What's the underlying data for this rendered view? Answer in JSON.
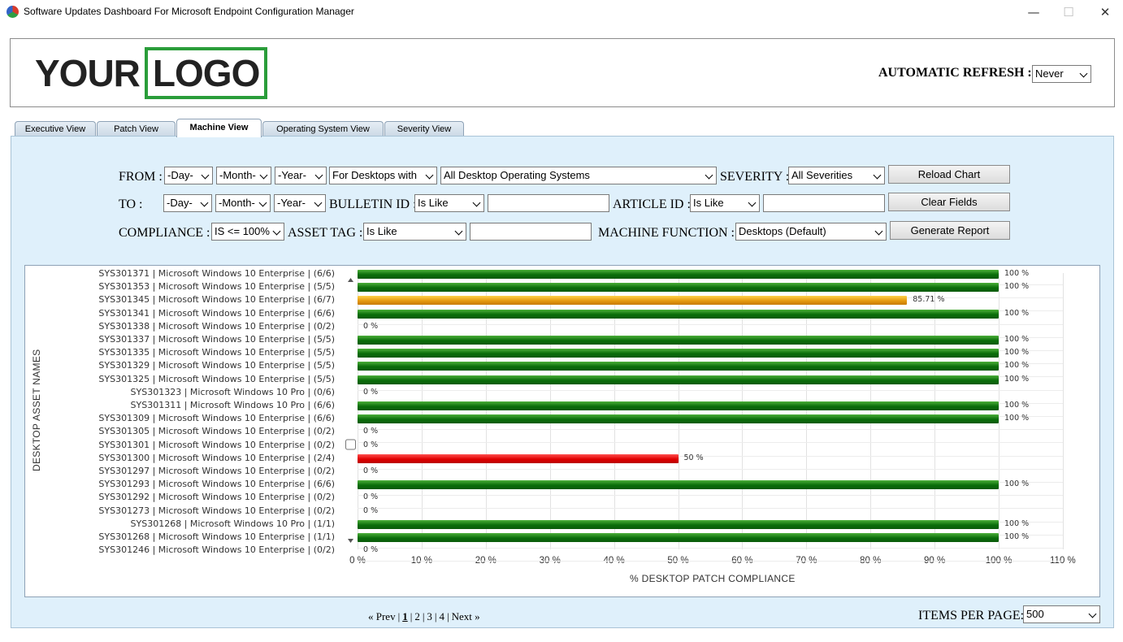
{
  "window": {
    "title": "Software Updates Dashboard For Microsoft Endpoint Configuration Manager",
    "minimize": "—",
    "maximize": "☐",
    "close": "✕"
  },
  "header": {
    "logo_left": "YOUR",
    "logo_right": "LOGO",
    "refresh_label": "AUTOMATIC REFRESH :",
    "refresh_value": "Never"
  },
  "tabs": [
    "Executive View",
    "Patch View",
    "Machine View",
    "Operating System View",
    "Severity View"
  ],
  "active_tab": "Machine View",
  "filters": {
    "from_label": "FROM :",
    "to_label": "TO :",
    "day": "-Day-",
    "month": "-Month-",
    "year": "-Year-",
    "desktops_with": "For Desktops with",
    "os": "All Desktop Operating Systems",
    "severity_label": "SEVERITY :",
    "severity": "All Severities",
    "bulletin_label": "BULLETIN ID :",
    "bulletin_op": "Is Like",
    "article_label": "ARTICLE ID :",
    "article_op": "Is Like",
    "compliance_label": "COMPLIANCE :",
    "compliance": "IS <= 100%",
    "asset_label": "ASSET TAG :",
    "asset_op": "Is Like",
    "machine_function_label": "MACHINE FUNCTION :",
    "machine_function": "Desktops (Default)"
  },
  "buttons": {
    "reload": "Reload Chart",
    "clear": "Clear Fields",
    "generate": "Generate Report"
  },
  "chart_data": {
    "type": "bar",
    "orientation": "horizontal",
    "ylabel": "DESKTOP ASSET NAMES",
    "xlabel": "% DESKTOP PATCH COMPLIANCE",
    "xlim": [
      0,
      110
    ],
    "xticks": [
      "0 %",
      "10 %",
      "20 %",
      "30 %",
      "40 %",
      "50 %",
      "60 %",
      "70 %",
      "80 %",
      "90 %",
      "100 %",
      "110 %"
    ],
    "categories": [
      "SYS301371 | Microsoft Windows 10 Enterprise | (6/6)",
      "SYS301353 | Microsoft Windows 10 Enterprise | (5/5)",
      "SYS301345 | Microsoft Windows 10 Enterprise | (6/7)",
      "SYS301341 | Microsoft Windows 10 Enterprise | (6/6)",
      "SYS301338 | Microsoft Windows 10 Enterprise | (0/2)",
      "SYS301337 | Microsoft Windows 10 Enterprise | (5/5)",
      "SYS301335 | Microsoft Windows 10 Enterprise | (5/5)",
      "SYS301329 | Microsoft Windows 10 Enterprise | (5/5)",
      "SYS301325 | Microsoft Windows 10 Enterprise | (5/5)",
      "SYS301323 | Microsoft Windows 10 Pro | (0/6)",
      "SYS301311 | Microsoft Windows 10 Pro | (6/6)",
      "SYS301309 | Microsoft Windows 10 Enterprise | (6/6)",
      "SYS301305 | Microsoft Windows 10 Enterprise | (0/2)",
      "SYS301301 | Microsoft Windows 10 Enterprise | (0/2)",
      "SYS301300 | Microsoft Windows 10 Enterprise | (2/4)",
      "SYS301297 | Microsoft Windows 10 Enterprise | (0/2)",
      "SYS301293 | Microsoft Windows 10 Enterprise | (6/6)",
      "SYS301292 | Microsoft Windows 10 Enterprise | (0/2)",
      "SYS301273 | Microsoft Windows 10 Enterprise | (0/2)",
      "SYS301268 | Microsoft Windows 10 Pro | (1/1)",
      "SYS301268 | Microsoft Windows 10 Enterprise | (1/1)",
      "SYS301246 | Microsoft Windows 10 Enterprise | (0/2)"
    ],
    "values": [
      100,
      100,
      85.71,
      100,
      0,
      100,
      100,
      100,
      100,
      0,
      100,
      100,
      0,
      0,
      50,
      0,
      100,
      0,
      0,
      100,
      100,
      0
    ],
    "value_labels": [
      "100 %",
      "100 %",
      "85.71 %",
      "100 %",
      "0 %",
      "100 %",
      "100 %",
      "100 %",
      "100 %",
      "0 %",
      "100 %",
      "100 %",
      "0 %",
      "0 %",
      "50 %",
      "0 %",
      "100 %",
      "0 %",
      "0 %",
      "100 %",
      "100 %",
      "0 %"
    ],
    "colors": {
      "full": "#0a7a0a",
      "partial": "#f0a010",
      "low": "#e00000"
    }
  },
  "pager": {
    "prev": "« Prev",
    "pages": [
      "1",
      "2",
      "3",
      "4"
    ],
    "current": "1",
    "next": "Next »",
    "items_label": "ITEMS PER PAGE:",
    "items_value": "500"
  }
}
